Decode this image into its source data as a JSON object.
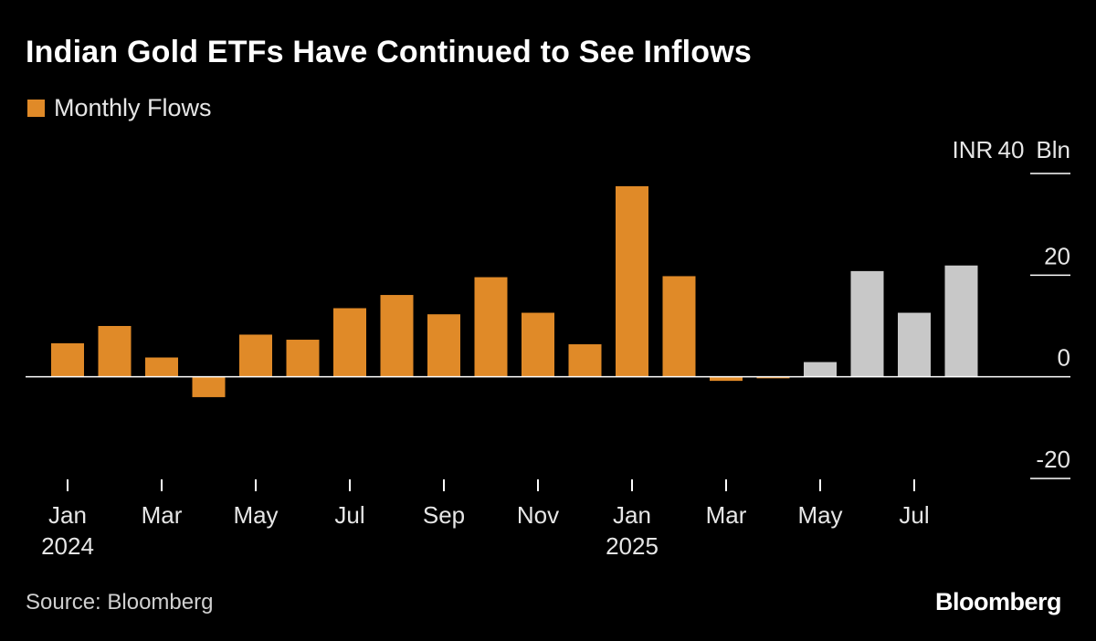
{
  "header": {
    "title": "Indian Gold ETFs Have Continued to See Inflows"
  },
  "legend": {
    "label": "Monthly Flows"
  },
  "footer": {
    "source": "Source: Bloomberg",
    "brand": "Bloomberg"
  },
  "colors": {
    "background": "#000000",
    "orange": "#e08a28",
    "gray": "#c8c8c8",
    "axis": "#ffffff"
  },
  "chart_data": {
    "type": "bar",
    "title": "Indian Gold ETFs Have Continued to See Inflows",
    "xlabel": "",
    "ylabel": "INR Bln",
    "y_unit_prefix": "INR",
    "y_unit_suffix": "Bln",
    "ylim": [
      -20,
      40
    ],
    "yticks": [
      40,
      20,
      0,
      -20
    ],
    "categories": [
      "Jan 2024",
      "Feb 2024",
      "Mar 2024",
      "Apr 2024",
      "May 2024",
      "Jun 2024",
      "Jul 2024",
      "Aug 2024",
      "Sep 2024",
      "Oct 2024",
      "Nov 2024",
      "Dec 2024",
      "Jan 2025",
      "Feb 2025",
      "Mar 2025",
      "Apr 2025",
      "May 2025",
      "Jun 2025",
      "Jul 2025",
      "Aug 2025"
    ],
    "series": [
      {
        "name": "Monthly Flows",
        "values": [
          6.6,
          10.0,
          3.8,
          -4.0,
          8.3,
          7.3,
          13.5,
          16.1,
          12.3,
          19.6,
          12.6,
          6.4,
          37.5,
          19.8,
          -0.8,
          -0.3,
          2.9,
          20.8,
          12.6,
          21.9
        ]
      }
    ],
    "highlight_from_index": 16,
    "xtick_labels": [
      {
        "index": 0,
        "month": "Jan",
        "year": "2024"
      },
      {
        "index": 2,
        "month": "Mar",
        "year": ""
      },
      {
        "index": 4,
        "month": "May",
        "year": ""
      },
      {
        "index": 6,
        "month": "Jul",
        "year": ""
      },
      {
        "index": 8,
        "month": "Sep",
        "year": ""
      },
      {
        "index": 10,
        "month": "Nov",
        "year": ""
      },
      {
        "index": 12,
        "month": "Jan",
        "year": "2025"
      },
      {
        "index": 14,
        "month": "Mar",
        "year": ""
      },
      {
        "index": 16,
        "month": "May",
        "year": ""
      },
      {
        "index": 18,
        "month": "Jul",
        "year": ""
      }
    ],
    "legend_position": "top-left"
  }
}
